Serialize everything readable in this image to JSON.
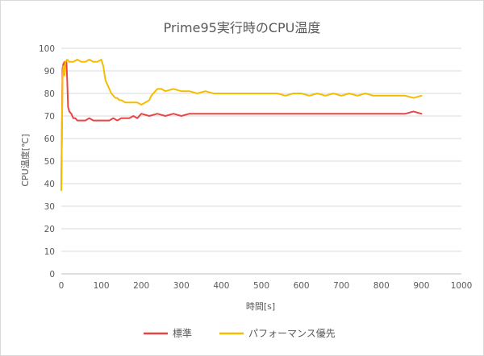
{
  "chart_data": {
    "type": "line",
    "title": "Prime95実行時のCPU温度",
    "xlabel": "時間[s]",
    "ylabel": "CPU温度[℃]",
    "xlim": [
      0,
      1000
    ],
    "ylim": [
      0,
      100
    ],
    "xticks": [
      0,
      100,
      200,
      300,
      400,
      500,
      600,
      700,
      800,
      900,
      1000
    ],
    "yticks": [
      0,
      10,
      20,
      30,
      40,
      50,
      60,
      70,
      80,
      90,
      100
    ],
    "grid": "horizontal",
    "legend_position": "bottom",
    "series": [
      {
        "name": "標準",
        "color": "#e84646",
        "x": [
          0,
          3,
          5,
          8,
          10,
          13,
          15,
          17,
          20,
          25,
          30,
          35,
          40,
          50,
          60,
          70,
          80,
          90,
          100,
          110,
          120,
          130,
          140,
          150,
          160,
          170,
          180,
          190,
          200,
          220,
          240,
          260,
          280,
          300,
          320,
          340,
          360,
          380,
          400,
          420,
          440,
          460,
          480,
          500,
          520,
          540,
          560,
          580,
          600,
          620,
          640,
          660,
          680,
          700,
          720,
          740,
          760,
          780,
          800,
          820,
          840,
          860,
          880,
          900
        ],
        "y": [
          38,
          91,
          93,
          94,
          92,
          94,
          85,
          74,
          72,
          71,
          69,
          69,
          68,
          68,
          68,
          69,
          68,
          68,
          68,
          68,
          68,
          69,
          68,
          69,
          69,
          69,
          70,
          69,
          71,
          70,
          71,
          70,
          71,
          70,
          71,
          71,
          71,
          71,
          71,
          71,
          71,
          71,
          71,
          71,
          71,
          71,
          71,
          71,
          71,
          71,
          71,
          71,
          71,
          71,
          71,
          71,
          71,
          71,
          71,
          71,
          71,
          71,
          72,
          71
        ]
      },
      {
        "name": "パフォーマンス優先",
        "color": "#f5bd00",
        "x": [
          0,
          3,
          5,
          8,
          10,
          15,
          20,
          30,
          40,
          50,
          60,
          70,
          80,
          90,
          100,
          105,
          110,
          115,
          120,
          125,
          130,
          135,
          140,
          145,
          150,
          160,
          170,
          180,
          190,
          200,
          210,
          220,
          225,
          230,
          235,
          240,
          250,
          260,
          280,
          300,
          320,
          340,
          360,
          380,
          400,
          420,
          440,
          460,
          480,
          500,
          520,
          540,
          560,
          580,
          600,
          620,
          640,
          660,
          680,
          700,
          720,
          740,
          760,
          780,
          800,
          820,
          840,
          860,
          880,
          900
        ],
        "y": [
          37,
          86,
          92,
          88,
          94,
          95,
          94,
          94,
          95,
          94,
          94,
          95,
          94,
          94,
          95,
          92,
          86,
          84,
          82,
          80,
          79,
          78,
          78,
          77,
          77,
          76,
          76,
          76,
          76,
          75,
          76,
          77,
          79,
          80,
          81,
          82,
          82,
          81,
          82,
          81,
          81,
          80,
          81,
          80,
          80,
          80,
          80,
          80,
          80,
          80,
          80,
          80,
          79,
          80,
          80,
          79,
          80,
          79,
          80,
          79,
          80,
          79,
          80,
          79,
          79,
          79,
          79,
          79,
          78,
          79
        ]
      }
    ]
  }
}
